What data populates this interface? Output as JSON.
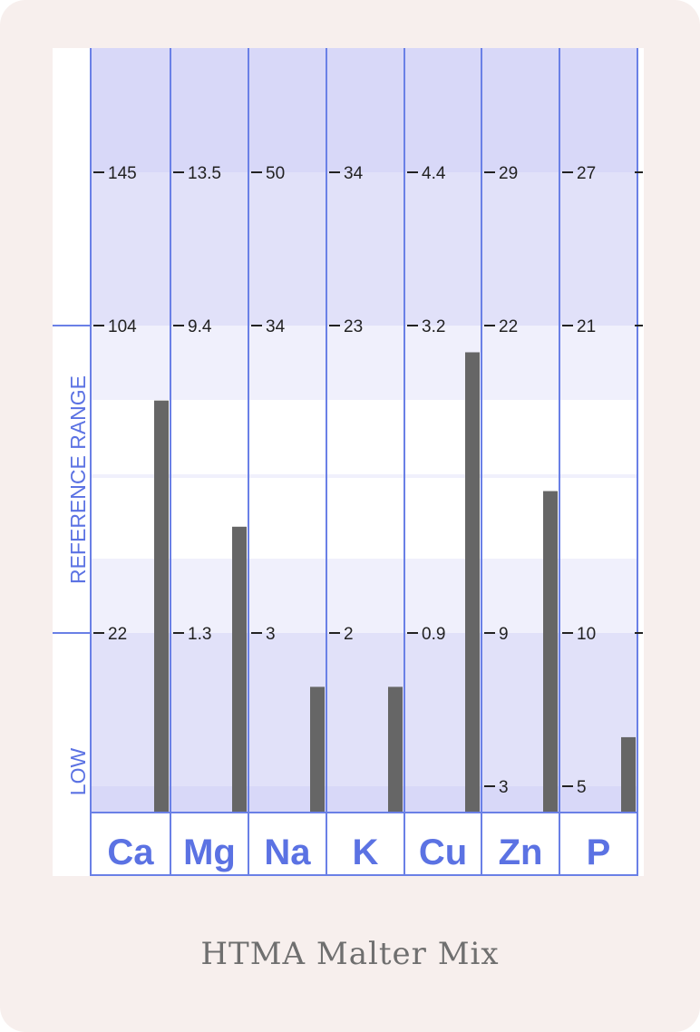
{
  "caption": "HTMA Malter Mix",
  "chart_data": {
    "type": "bar",
    "categories": [
      "Ca",
      "Mg",
      "Na",
      "K",
      "Cu",
      "Zn",
      "P"
    ],
    "values": [
      84,
      4.1,
      2.1,
      1.4,
      3.0,
      15.0,
      6.6
    ],
    "band_labels": {
      "reference": "REFERENCE   RANGE",
      "low": "LOW"
    },
    "scale_ticks": [
      {
        "element": "Ca",
        "upper": "145",
        "high": "104",
        "low": "22",
        "bottom": ""
      },
      {
        "element": "Mg",
        "upper": "13.5",
        "high": "9.4",
        "low": "1.3",
        "bottom": ""
      },
      {
        "element": "Na",
        "upper": "50",
        "high": "34",
        "low": "3",
        "bottom": ""
      },
      {
        "element": "K",
        "upper": "34",
        "high": "23",
        "low": "2",
        "bottom": ""
      },
      {
        "element": "Cu",
        "upper": "4.4",
        "high": "3.2",
        "low": "0.9",
        "bottom": ""
      },
      {
        "element": "Zn",
        "upper": "29",
        "high": "22",
        "low": "9",
        "bottom": "3"
      },
      {
        "element": "P",
        "upper": "27",
        "high": "21",
        "low": "10",
        "bottom": "5"
      }
    ],
    "colors": {
      "bar": "#666666",
      "grid": "#6a80e6",
      "label": "#5b72e3",
      "band_dark": "#d8d8f8",
      "band_mid": "#e1e1f9",
      "band_light": "#f0f0fc",
      "band_white": "#ffffff"
    }
  }
}
